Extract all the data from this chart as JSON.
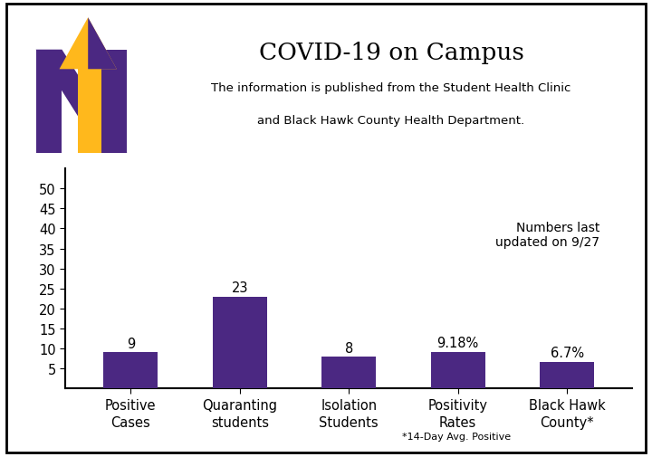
{
  "title": "COVID-19 on Campus",
  "subtitle_line1": "The information is published from the Student Health Clinic",
  "subtitle_line2": "and Black Hawk County Health Department.",
  "update_note": "Numbers last\nupdated on 9/27",
  "categories": [
    "Positive\nCases",
    "Quaranting\nstudents",
    "Isolation\nStudents",
    "Positivity\nRates",
    "Black Hawk\nCounty*"
  ],
  "values": [
    9,
    23,
    8,
    9.18,
    6.7
  ],
  "labels": [
    "9",
    "23",
    "8",
    "9.18%",
    "6.7%"
  ],
  "bar_color": "#4B2882",
  "ylim": [
    0,
    55
  ],
  "yticks": [
    5,
    10,
    15,
    20,
    25,
    30,
    35,
    40,
    45,
    50
  ],
  "footnote": "*14-Day Avg. Positive",
  "background_color": "#ffffff",
  "border_color": "#000000",
  "logo_purple": "#4B2882",
  "logo_gold": "#FFB81C"
}
